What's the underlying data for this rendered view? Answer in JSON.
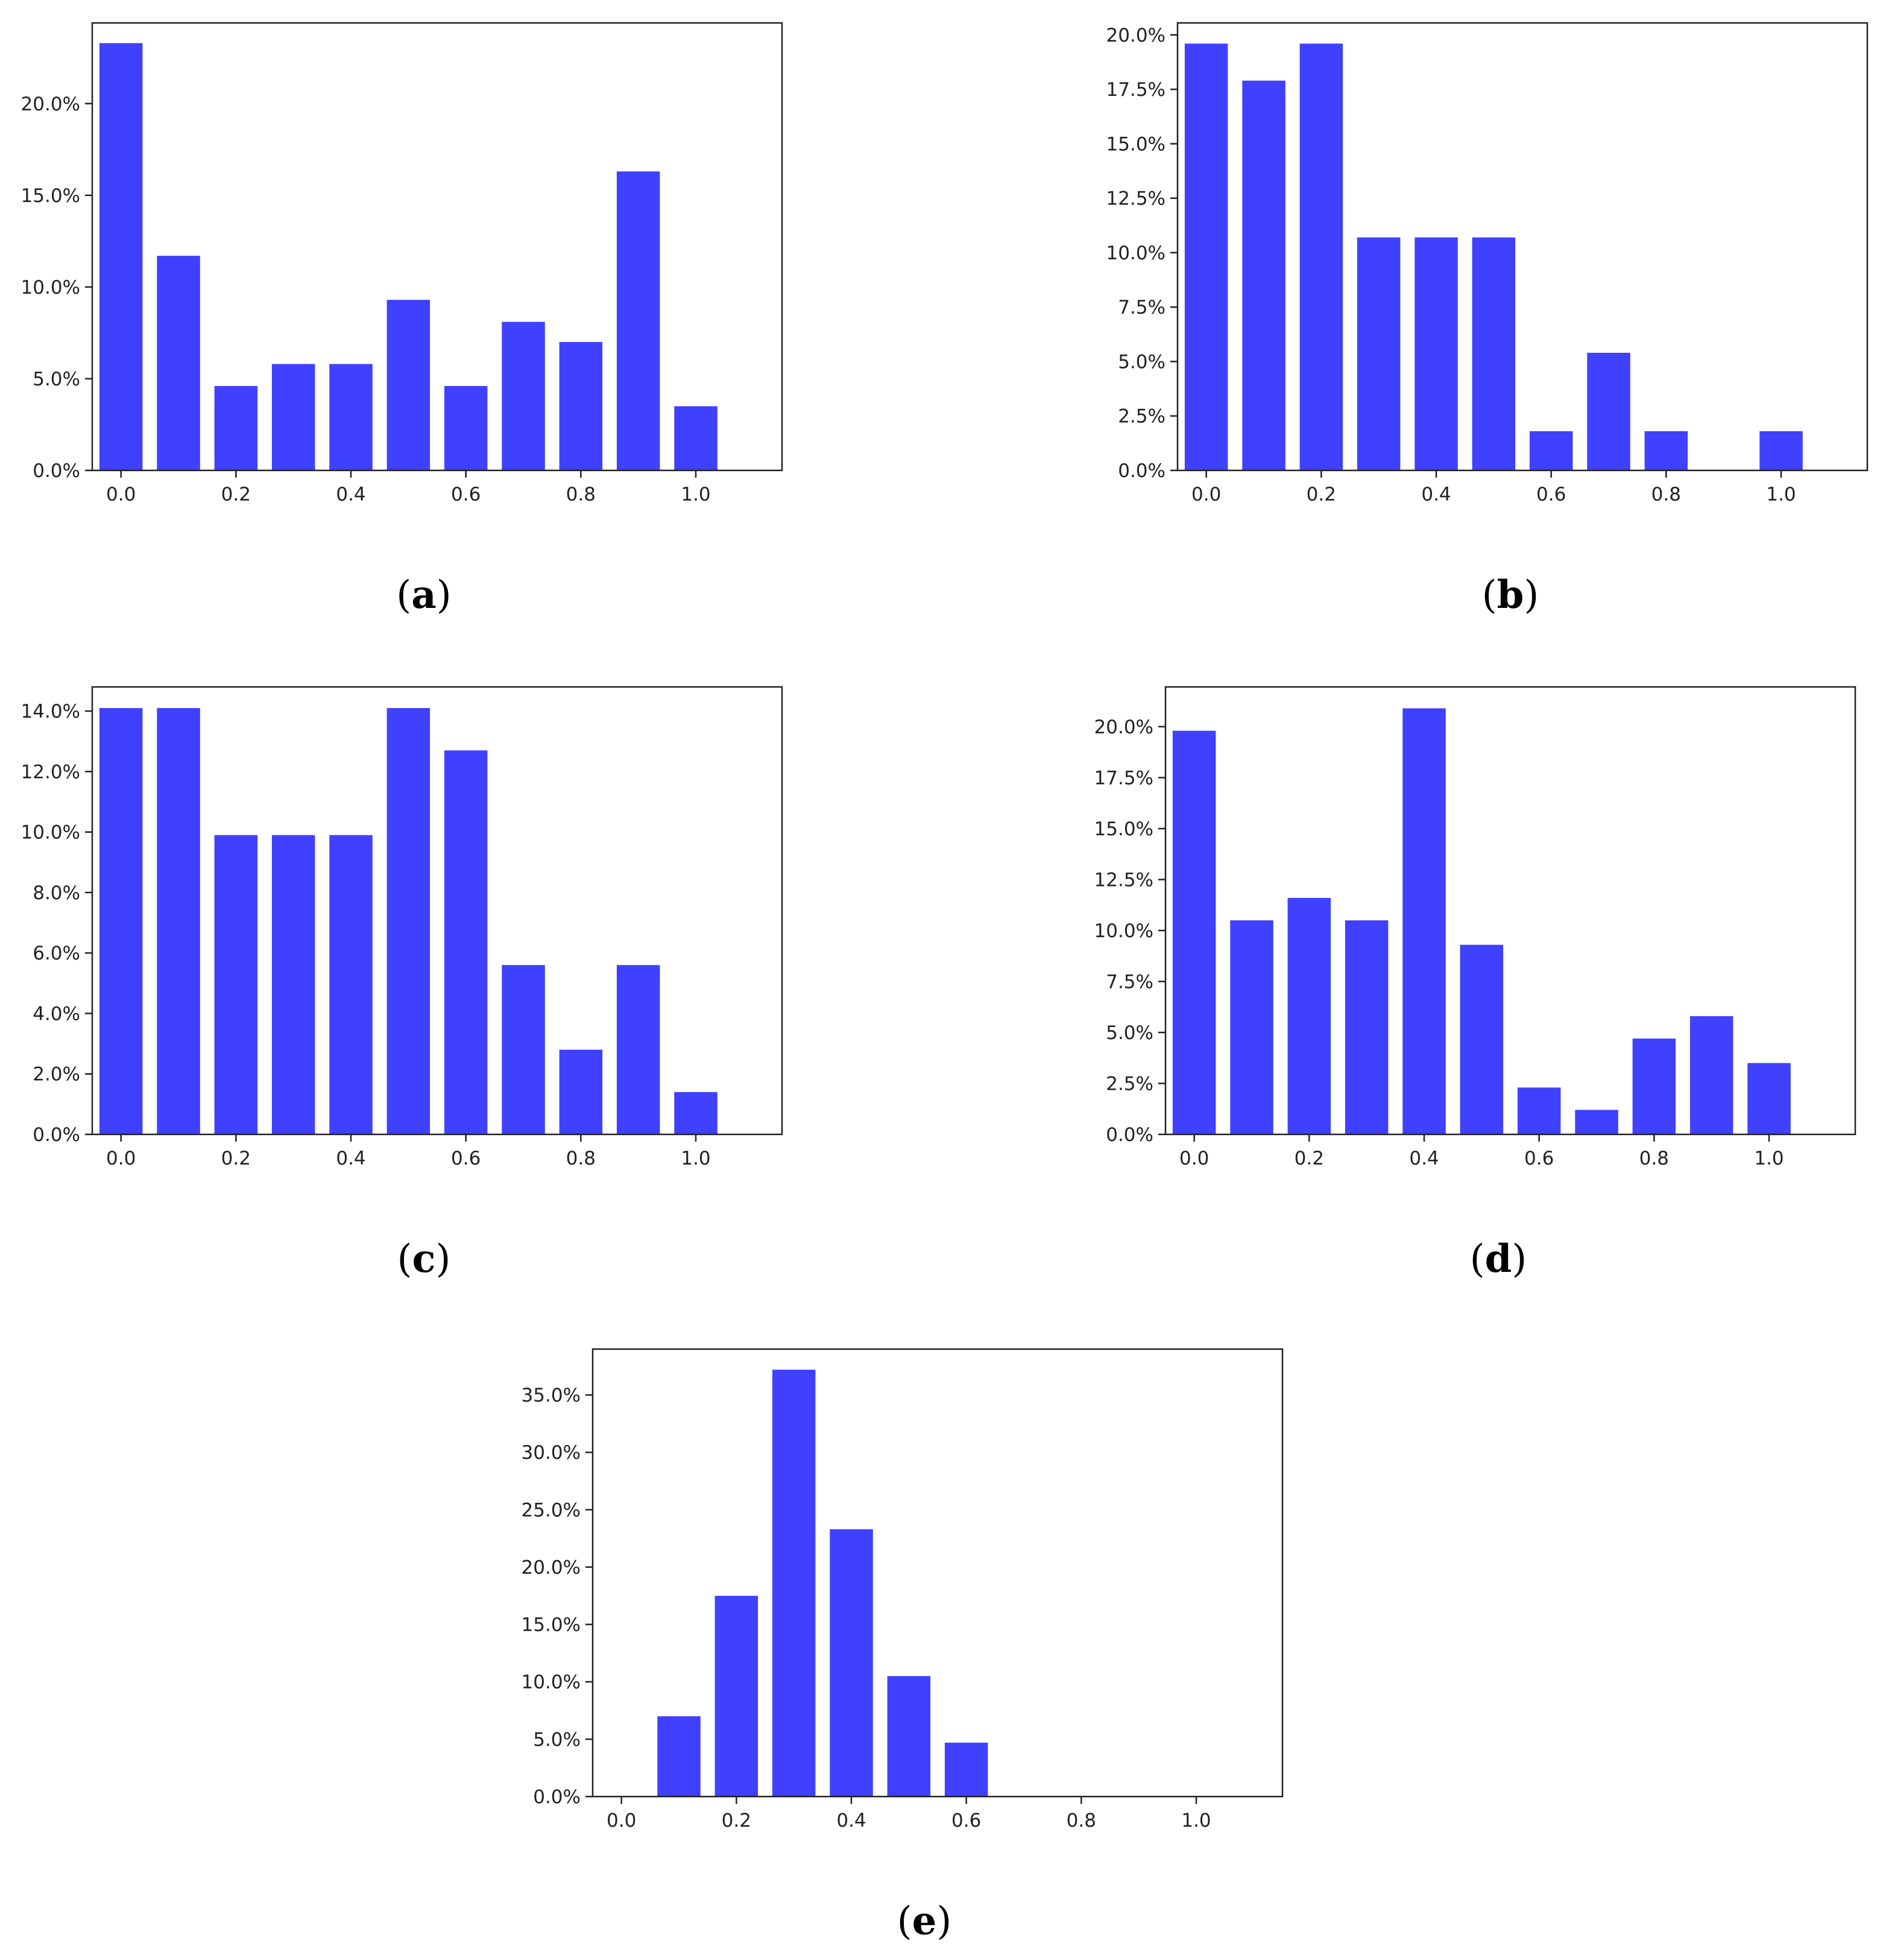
{
  "figure": {
    "bar_color": "#4040ff",
    "axis_color": "#222222",
    "background": "#ffffff"
  },
  "chart_data": [
    {
      "id": "a",
      "type": "bar",
      "panel_label": "a",
      "x": [
        0.0,
        0.1,
        0.2,
        0.3,
        0.4,
        0.5,
        0.6,
        0.7,
        0.8,
        0.9,
        1.0
      ],
      "values": [
        23.3,
        11.7,
        4.6,
        5.8,
        5.8,
        9.3,
        4.6,
        8.1,
        7.0,
        16.3,
        3.5
      ],
      "xlim": [
        -0.05,
        1.15
      ],
      "ylim": [
        0,
        24.4
      ],
      "xticks": [
        0.0,
        0.2,
        0.4,
        0.6,
        0.8,
        1.0
      ],
      "xtick_labels": [
        "0.0",
        "0.2",
        "0.4",
        "0.6",
        "0.8",
        "1.0"
      ],
      "yticks": [
        0,
        5,
        10,
        15,
        20
      ],
      "ytick_labels": [
        "0.0%",
        "5.0%",
        "10.0%",
        "15.0%",
        "20.0%"
      ],
      "title": "",
      "xlabel": "",
      "ylabel": "",
      "grid": false
    },
    {
      "id": "b",
      "type": "bar",
      "panel_label": "b",
      "x": [
        0.0,
        0.1,
        0.2,
        0.3,
        0.4,
        0.5,
        0.6,
        0.7,
        0.8,
        0.9,
        1.0
      ],
      "values": [
        19.6,
        17.9,
        19.6,
        10.7,
        10.7,
        10.7,
        1.8,
        5.4,
        1.8,
        0.0,
        1.8
      ],
      "xlim": [
        -0.05,
        1.15
      ],
      "ylim": [
        0,
        20.55
      ],
      "xticks": [
        0.0,
        0.2,
        0.4,
        0.6,
        0.8,
        1.0
      ],
      "xtick_labels": [
        "0.0",
        "0.2",
        "0.4",
        "0.6",
        "0.8",
        "1.0"
      ],
      "yticks": [
        0,
        2.5,
        5,
        7.5,
        10,
        12.5,
        15,
        17.5,
        20
      ],
      "ytick_labels": [
        "0.0%",
        "2.5%",
        "5.0%",
        "7.5%",
        "10.0%",
        "12.5%",
        "15.0%",
        "17.5%",
        "20.0%"
      ],
      "title": "",
      "xlabel": "",
      "ylabel": "",
      "grid": false
    },
    {
      "id": "c",
      "type": "bar",
      "panel_label": "c",
      "x": [
        0.0,
        0.1,
        0.2,
        0.3,
        0.4,
        0.5,
        0.6,
        0.7,
        0.8,
        0.9,
        1.0
      ],
      "values": [
        14.1,
        14.1,
        9.9,
        9.9,
        9.9,
        14.1,
        12.7,
        5.6,
        2.8,
        5.6,
        1.4
      ],
      "xlim": [
        -0.05,
        1.15
      ],
      "ylim": [
        0,
        14.8
      ],
      "xticks": [
        0.0,
        0.2,
        0.4,
        0.6,
        0.8,
        1.0
      ],
      "xtick_labels": [
        "0.0",
        "0.2",
        "0.4",
        "0.6",
        "0.8",
        "1.0"
      ],
      "yticks": [
        0,
        2,
        4,
        6,
        8,
        10,
        12,
        14
      ],
      "ytick_labels": [
        "0.0%",
        "2.0%",
        "4.0%",
        "6.0%",
        "8.0%",
        "10.0%",
        "12.0%",
        "14.0%"
      ],
      "title": "",
      "xlabel": "",
      "ylabel": "",
      "grid": false
    },
    {
      "id": "d",
      "type": "bar",
      "panel_label": "d",
      "x": [
        0.0,
        0.1,
        0.2,
        0.3,
        0.4,
        0.5,
        0.6,
        0.7,
        0.8,
        0.9,
        1.0
      ],
      "values": [
        19.8,
        10.5,
        11.6,
        10.5,
        20.9,
        9.3,
        2.3,
        1.2,
        4.7,
        5.8,
        3.5
      ],
      "xlim": [
        -0.05,
        1.15
      ],
      "ylim": [
        0,
        21.95
      ],
      "xticks": [
        0.0,
        0.2,
        0.4,
        0.6,
        0.8,
        1.0
      ],
      "xtick_labels": [
        "0.0",
        "0.2",
        "0.4",
        "0.6",
        "0.8",
        "1.0"
      ],
      "yticks": [
        0,
        2.5,
        5,
        7.5,
        10,
        12.5,
        15,
        17.5,
        20
      ],
      "ytick_labels": [
        "0.0%",
        "2.5%",
        "5.0%",
        "7.5%",
        "10.0%",
        "12.5%",
        "15.0%",
        "17.5%",
        "20.0%"
      ],
      "title": "",
      "xlabel": "",
      "ylabel": "",
      "grid": false
    },
    {
      "id": "e",
      "type": "bar",
      "panel_label": "e",
      "x": [
        0.0,
        0.1,
        0.2,
        0.3,
        0.4,
        0.5,
        0.6,
        0.7,
        0.8,
        0.9,
        1.0
      ],
      "values": [
        0.0,
        7.0,
        17.5,
        37.2,
        23.3,
        10.5,
        4.7,
        0.0,
        0.0,
        0.0,
        0.0
      ],
      "xlim": [
        -0.05,
        1.15
      ],
      "ylim": [
        0,
        39.0
      ],
      "xticks": [
        0.0,
        0.2,
        0.4,
        0.6,
        0.8,
        1.0
      ],
      "xtick_labels": [
        "0.0",
        "0.2",
        "0.4",
        "0.6",
        "0.8",
        "1.0"
      ],
      "yticks": [
        0,
        5,
        10,
        15,
        20,
        25,
        30,
        35
      ],
      "ytick_labels": [
        "0.0%",
        "5.0%",
        "10.0%",
        "15.0%",
        "20.0%",
        "25.0%",
        "30.0%",
        "35.0%"
      ],
      "title": "",
      "xlabel": "",
      "ylabel": "",
      "grid": false
    }
  ]
}
